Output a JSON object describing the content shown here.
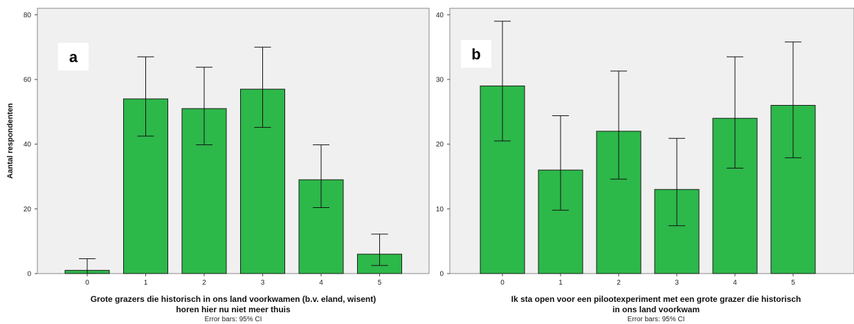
{
  "chart_data": [
    {
      "type": "bar",
      "panel_label": "a",
      "categories": [
        "0",
        "1",
        "2",
        "3",
        "4",
        "5"
      ],
      "values": [
        1,
        54,
        51,
        57,
        29,
        6
      ],
      "error_low": [
        0,
        42.5,
        39.8,
        45.2,
        20.4,
        2.5
      ],
      "error_high": [
        4.6,
        67,
        63.8,
        70,
        39.8,
        12.2
      ],
      "xlabel_lines": [
        "Grote grazers die historisch in ons land voorkwamen (b.v. eland, wisent)",
        "horen hier nu niet meer thuis"
      ],
      "ylabel": "Aantal respondenten",
      "ylim": [
        0,
        82
      ],
      "yticks": [
        0,
        20,
        40,
        60,
        80
      ],
      "footnote": "Error bars: 95% CI",
      "bar_color": "#2db84a",
      "plot_background": "#f0f0f0"
    },
    {
      "type": "bar",
      "panel_label": "b",
      "categories": [
        "0",
        "1",
        "2",
        "3",
        "4",
        "5"
      ],
      "values": [
        29,
        16,
        22,
        13,
        24,
        26
      ],
      "error_low": [
        20.5,
        9.8,
        14.6,
        7.4,
        16.3,
        17.9
      ],
      "error_high": [
        39,
        24.4,
        31.3,
        20.9,
        33.5,
        35.8
      ],
      "xlabel_lines": [
        "Ik sta open voor een pilootexperiment met een grote grazer die historisch",
        "in ons land voorkwam"
      ],
      "ylabel": "",
      "ylim": [
        0,
        41
      ],
      "yticks": [
        0,
        10,
        20,
        30,
        40
      ],
      "footnote": "Error bars: 95% CI",
      "bar_color": "#2db84a",
      "plot_background": "#f0f0f0"
    }
  ]
}
